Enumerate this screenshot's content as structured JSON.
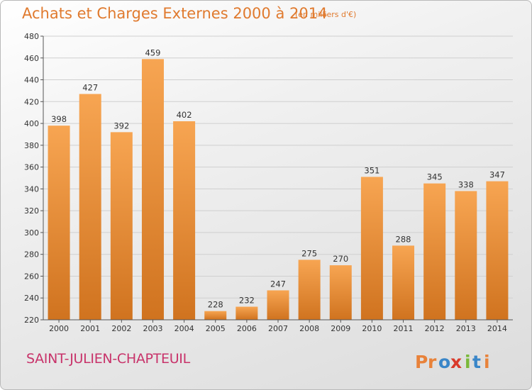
{
  "header": {
    "title": "Achats et Charges Externes 2000 à 2014",
    "unit_note": "(en milliers d'€)"
  },
  "footer": {
    "city": "SAINT-JULIEN-CHAPTEUIL",
    "logo": {
      "text": "Proxiti",
      "letters": [
        "P",
        "r",
        "o",
        "x",
        "i",
        "t",
        "i"
      ]
    }
  },
  "colors": {
    "bar_top": "#f7a552",
    "bar_bottom": "#d0731f",
    "title": "#e07a2e",
    "city": "#c8336a",
    "logo_letters": [
      "#e8823a",
      "#e8823a",
      "#3a86c8",
      "#d93a2a",
      "#7ab93a",
      "#3a86c8",
      "#e8823a"
    ]
  },
  "chart_data": {
    "type": "bar",
    "title": "Achats et Charges Externes 2000 à 2014",
    "subtitle": "(en milliers d'€)",
    "categories": [
      "2000",
      "2001",
      "2002",
      "2003",
      "2004",
      "2005",
      "2006",
      "2007",
      "2008",
      "2009",
      "2010",
      "2011",
      "2012",
      "2013",
      "2014"
    ],
    "values": [
      398,
      427,
      392,
      459,
      402,
      228,
      232,
      247,
      275,
      270,
      351,
      288,
      345,
      338,
      347
    ],
    "ylim": [
      220,
      480
    ],
    "yticks": [
      220,
      240,
      260,
      280,
      300,
      320,
      340,
      360,
      380,
      400,
      420,
      440,
      460,
      480
    ],
    "grid": true,
    "data_labels": true
  }
}
